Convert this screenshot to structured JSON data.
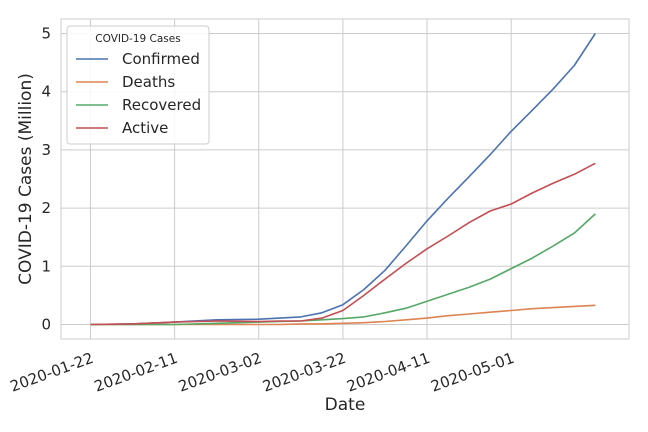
{
  "chart_data": {
    "type": "line",
    "xlabel": "Date",
    "ylabel": "COVID-19 Cases (Million)",
    "xlim": [
      "2020-01-15",
      "2020-05-29"
    ],
    "ylim": [
      -0.25,
      5.25
    ],
    "x_ticks": [
      "2020-01-22",
      "2020-02-11",
      "2020-03-02",
      "2020-03-22",
      "2020-04-11",
      "2020-05-01"
    ],
    "y_ticks": [
      "0",
      "1",
      "2",
      "3",
      "4",
      "5"
    ],
    "grid": true,
    "legend": {
      "title": "COVID-19 Cases",
      "placement": "top-left"
    },
    "x": [
      "2020-01-22",
      "2020-02-01",
      "2020-02-11",
      "2020-02-21",
      "2020-03-02",
      "2020-03-07",
      "2020-03-12",
      "2020-03-17",
      "2020-03-22",
      "2020-03-27",
      "2020-04-01",
      "2020-04-06",
      "2020-04-11",
      "2020-04-16",
      "2020-04-21",
      "2020-04-26",
      "2020-05-01",
      "2020-05-06",
      "2020-05-11",
      "2020-05-16",
      "2020-05-21"
    ],
    "series": [
      {
        "name": "Confirmed",
        "color": "#4c72b0",
        "values": [
          0.0,
          0.01,
          0.04,
          0.08,
          0.09,
          0.11,
          0.13,
          0.2,
          0.34,
          0.6,
          0.93,
          1.35,
          1.78,
          2.17,
          2.54,
          2.92,
          3.32,
          3.68,
          4.05,
          4.45,
          5.0
        ]
      },
      {
        "name": "Deaths",
        "color": "#dd8452",
        "values": [
          0.0,
          0.0,
          0.0,
          0.0,
          0.0,
          0.0,
          0.01,
          0.01,
          0.02,
          0.03,
          0.05,
          0.08,
          0.11,
          0.15,
          0.18,
          0.21,
          0.24,
          0.27,
          0.29,
          0.31,
          0.33
        ]
      },
      {
        "name": "Recovered",
        "color": "#55a868",
        "values": [
          0.0,
          0.0,
          0.0,
          0.02,
          0.04,
          0.05,
          0.06,
          0.08,
          0.1,
          0.13,
          0.2,
          0.28,
          0.4,
          0.52,
          0.64,
          0.78,
          0.96,
          1.14,
          1.35,
          1.57,
          1.9
        ]
      },
      {
        "name": "Active",
        "color": "#c44e52",
        "values": [
          0.0,
          0.01,
          0.04,
          0.06,
          0.05,
          0.06,
          0.06,
          0.11,
          0.24,
          0.5,
          0.78,
          1.05,
          1.3,
          1.52,
          1.75,
          1.95,
          2.07,
          2.26,
          2.43,
          2.58,
          2.77
        ]
      }
    ]
  }
}
